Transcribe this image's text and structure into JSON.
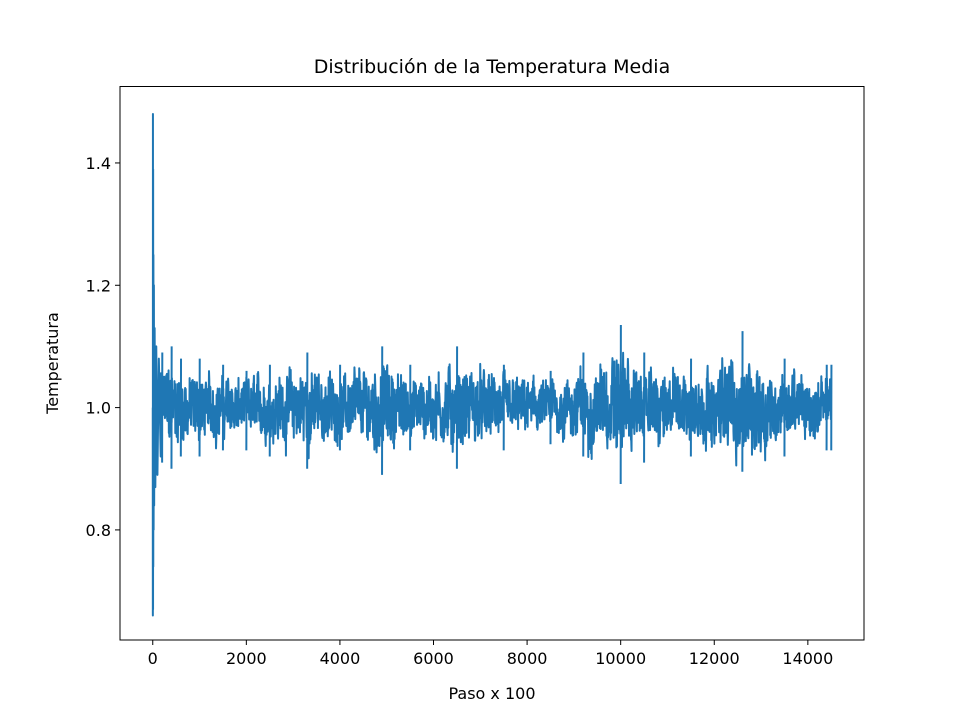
{
  "chart_data": {
    "type": "line",
    "title": "Distribución de la Temperatura Media",
    "xlabel": "Paso x 100",
    "ylabel": "Temperatura",
    "xlim": [
      -700,
      15200
    ],
    "ylim": [
      0.62,
      1.525
    ],
    "xticks": [
      0,
      2000,
      4000,
      6000,
      8000,
      10000,
      12000,
      14000
    ],
    "xtick_labels": [
      "0",
      "2000",
      "4000",
      "6000",
      "8000",
      "10000",
      "12000",
      "14000"
    ],
    "yticks": [
      0.8,
      1.0,
      1.2,
      1.4
    ],
    "ytick_labels": [
      "0.8",
      "1.0",
      "1.2",
      "1.4"
    ],
    "grid": false,
    "series": [
      {
        "color": "#1f77b4",
        "x_range": [
          0,
          14500
        ],
        "initial_transient": [
          [
            0,
            1.0
          ],
          [
            2,
            0.66
          ],
          [
            4,
            1.48
          ],
          [
            6,
            0.67
          ],
          [
            8,
            1.39
          ],
          [
            11,
            0.74
          ],
          [
            14,
            1.25
          ],
          [
            18,
            0.8
          ],
          [
            24,
            1.2
          ],
          [
            30,
            0.84
          ],
          [
            40,
            1.13
          ],
          [
            55,
            0.87
          ],
          [
            75,
            1.1
          ],
          [
            100,
            0.89
          ],
          [
            130,
            1.08
          ],
          [
            170,
            0.92
          ]
        ],
        "envelope": [
          [
            200,
            0.91,
            1.09
          ],
          [
            400,
            0.9,
            1.1
          ],
          [
            600,
            0.92,
            1.08
          ],
          [
            1000,
            0.92,
            1.08
          ],
          [
            1500,
            0.93,
            1.07
          ],
          [
            2000,
            0.93,
            1.06
          ],
          [
            2500,
            0.92,
            1.07
          ],
          [
            3300,
            0.9,
            1.09
          ],
          [
            4000,
            0.93,
            1.07
          ],
          [
            4900,
            0.89,
            1.1
          ],
          [
            5500,
            0.93,
            1.07
          ],
          [
            6500,
            0.9,
            1.1
          ],
          [
            7500,
            0.93,
            1.07
          ],
          [
            8500,
            0.94,
            1.06
          ],
          [
            9200,
            0.92,
            1.09
          ],
          [
            10000,
            0.875,
            1.135
          ],
          [
            10500,
            0.91,
            1.09
          ],
          [
            11500,
            0.92,
            1.08
          ],
          [
            12600,
            0.895,
            1.125
          ],
          [
            13500,
            0.92,
            1.08
          ],
          [
            14400,
            0.93,
            1.07
          ],
          [
            14500,
            0.93,
            1.07
          ]
        ]
      }
    ]
  }
}
